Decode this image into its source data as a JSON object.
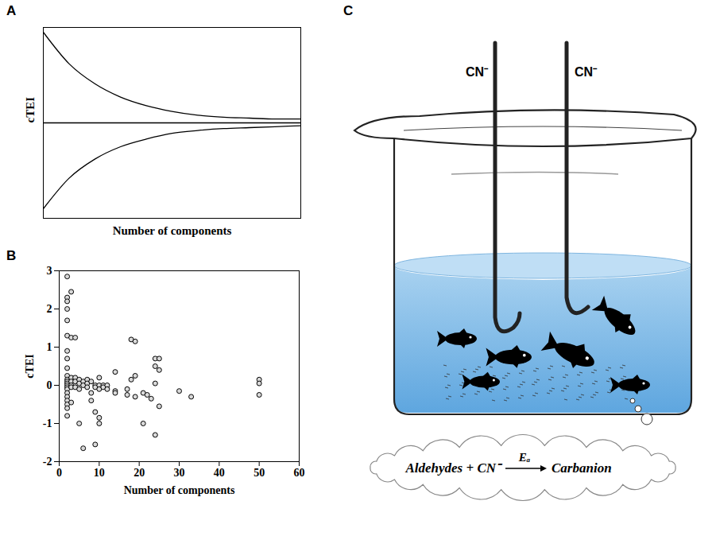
{
  "chart_data": [
    {
      "panel_label": "A",
      "type": "line",
      "tick_labels": false,
      "x_label": "Number of components",
      "y_label": "cTEI",
      "x": [
        0,
        1,
        2,
        3,
        4,
        5,
        6,
        7,
        8,
        9,
        10
      ],
      "xlim": [
        0,
        10
      ],
      "xticks": [],
      "ylim": [
        -1,
        1
      ],
      "yticks": [],
      "series": [
        {
          "color": "#000000",
          "values": [
            0.95,
            0.62,
            0.41,
            0.27,
            0.18,
            0.12,
            0.08,
            0.06,
            0.05,
            0.04,
            0.04
          ]
        },
        {
          "color": "#000000",
          "values": [
            0,
            0,
            0,
            0,
            0,
            0,
            0,
            0,
            0,
            0,
            0
          ]
        },
        {
          "color": "#000000",
          "values": [
            -0.9,
            -0.58,
            -0.38,
            -0.25,
            -0.17,
            -0.11,
            -0.08,
            -0.06,
            -0.05,
            -0.04,
            -0.03
          ]
        }
      ]
    },
    {
      "panel_label": "B",
      "type": "scatter",
      "marker": "circle-open",
      "color": "#000000",
      "x_label": "Number of components",
      "y_label": "cTEI",
      "xlim": [
        0,
        60
      ],
      "xticks": [
        0,
        10,
        20,
        30,
        40,
        50,
        60
      ],
      "ylim": [
        -2,
        3
      ],
      "yticks": [
        -2,
        -1,
        0,
        1,
        2,
        3
      ],
      "x": [
        2,
        2,
        2,
        2,
        2,
        2,
        2,
        2,
        2,
        2,
        2,
        2,
        2,
        2,
        2,
        2,
        2,
        2,
        2,
        2,
        2,
        2,
        3,
        3,
        3,
        3,
        3,
        3,
        3,
        4,
        4,
        4,
        4,
        5,
        5,
        5,
        5,
        6,
        6,
        6,
        7,
        7,
        7,
        8,
        8,
        8,
        9,
        9,
        9,
        9,
        10,
        10,
        10,
        10,
        10,
        11,
        11,
        12,
        12,
        14,
        14,
        14,
        17,
        17,
        18,
        18,
        19,
        19,
        19,
        21,
        21,
        22,
        23,
        24,
        24,
        24,
        24,
        25,
        25,
        25,
        30,
        33,
        50,
        50,
        50
      ],
      "values": [
        2.85,
        2.3,
        2.2,
        2.0,
        1.7,
        1.3,
        0.9,
        0.7,
        0.45,
        0.25,
        0.15,
        0.1,
        0.05,
        0,
        -0.05,
        -0.1,
        -0.2,
        -0.3,
        -0.4,
        -0.5,
        -0.6,
        -0.8,
        2.45,
        1.25,
        0.2,
        0.1,
        0,
        -0.05,
        -0.45,
        1.25,
        0.2,
        0.1,
        -0.05,
        0.15,
        0.05,
        -0.1,
        -1.0,
        0.1,
        0,
        -1.65,
        0.15,
        0.05,
        -0.05,
        0.1,
        -0.2,
        -0.4,
        -1.55,
        -0.7,
        0,
        -0.05,
        0.2,
        0,
        -0.1,
        -0.85,
        -1.0,
        0,
        -0.05,
        0,
        -0.1,
        0.35,
        -0.15,
        -0.2,
        -0.1,
        -0.25,
        1.2,
        0.15,
        1.15,
        0.25,
        -0.3,
        -0.2,
        -1.0,
        -0.25,
        -0.35,
        0.7,
        0.5,
        0.05,
        -1.3,
        0.7,
        0.4,
        -0.55,
        -0.15,
        -0.3,
        0.15,
        0.05,
        -0.25
      ]
    }
  ],
  "diagram": {
    "panel_label": "C",
    "tube_labels": [
      "CN⁻",
      "CN⁻"
    ],
    "equation": {
      "reactants": "Aldehydes + CN⁻",
      "arrow_label": "Eₐ",
      "product": "Carbanion"
    }
  }
}
